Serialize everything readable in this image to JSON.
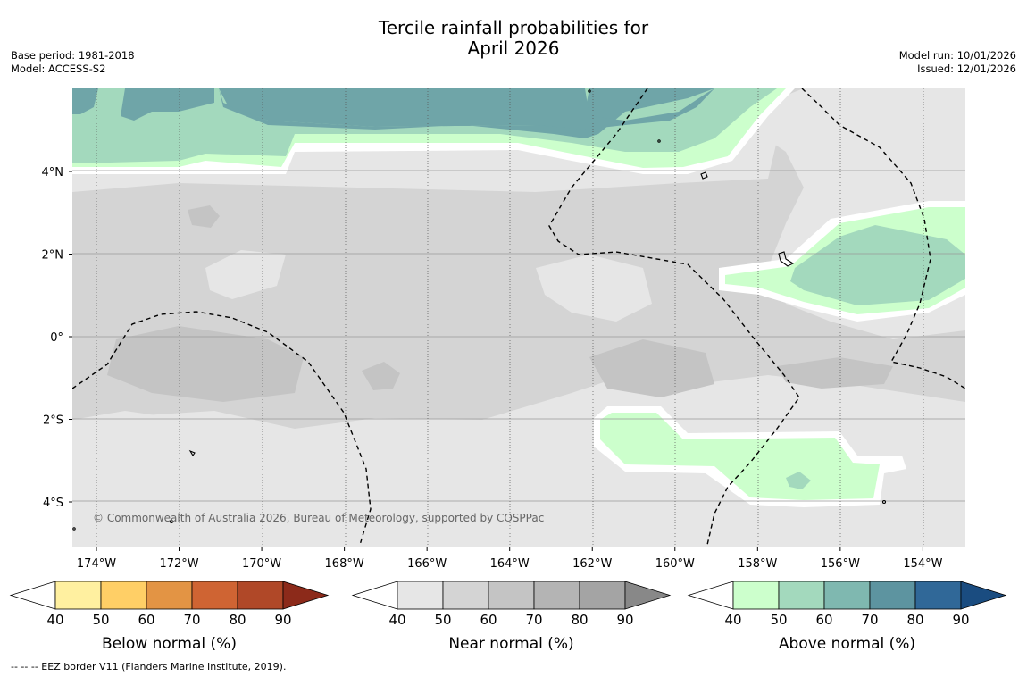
{
  "title_line1": "Tercile rainfall probabilities for",
  "title_line2": "April 2026",
  "meta_left": [
    "Base period: 1981-2018",
    "Model: ACCESS-S2"
  ],
  "meta_right": [
    "Model run: 10/01/2026",
    "Issued: 12/01/2026"
  ],
  "copyright": "© Commonwealth of Australia 2026, Bureau of Meteorology, supported by COSPPac",
  "lat_ticks": [
    {
      "value": 4,
      "label": "4°N"
    },
    {
      "value": 2,
      "label": "2°N"
    },
    {
      "value": 0,
      "label": "0°"
    },
    {
      "value": -2,
      "label": "2°S"
    },
    {
      "value": -4,
      "label": "4°S"
    }
  ],
  "lon_ticks": [
    {
      "value": -174,
      "label": "174°W"
    },
    {
      "value": -172,
      "label": "172°W"
    },
    {
      "value": -170,
      "label": "170°W"
    },
    {
      "value": -168,
      "label": "168°W"
    },
    {
      "value": -166,
      "label": "166°W"
    },
    {
      "value": -164,
      "label": "164°W"
    },
    {
      "value": -162,
      "label": "162°W"
    },
    {
      "value": -160,
      "label": "160°W"
    },
    {
      "value": -158,
      "label": "158°W"
    },
    {
      "value": -156,
      "label": "156°W"
    },
    {
      "value": -154,
      "label": "154°W"
    }
  ],
  "colorbars": [
    {
      "name": "below",
      "label": "Below normal (%)",
      "ticks": [
        "40",
        "50",
        "60",
        "70",
        "80",
        "90"
      ],
      "colors": [
        "#fff0a0",
        "#ffcf66",
        "#e39444",
        "#cf6433",
        "#b04828",
        "#8c2a1a"
      ]
    },
    {
      "name": "near",
      "label": "Near normal (%)",
      "ticks": [
        "40",
        "50",
        "60",
        "70",
        "80",
        "90"
      ],
      "colors": [
        "#e6e6e6",
        "#d4d4d4",
        "#c4c4c4",
        "#b4b4b4",
        "#a4a4a4",
        "#888888"
      ]
    },
    {
      "name": "above",
      "label": "Above normal (%)",
      "ticks": [
        "40",
        "50",
        "60",
        "70",
        "80",
        "90"
      ],
      "colors": [
        "#ccffcc",
        "#a3d9bd",
        "#7fb8b0",
        "#5d94a0",
        "#306898",
        "#1a4c80"
      ]
    }
  ],
  "footnote": "--  --  -- EEZ border V11 (Flanders Marine Institute, 2019)."
}
